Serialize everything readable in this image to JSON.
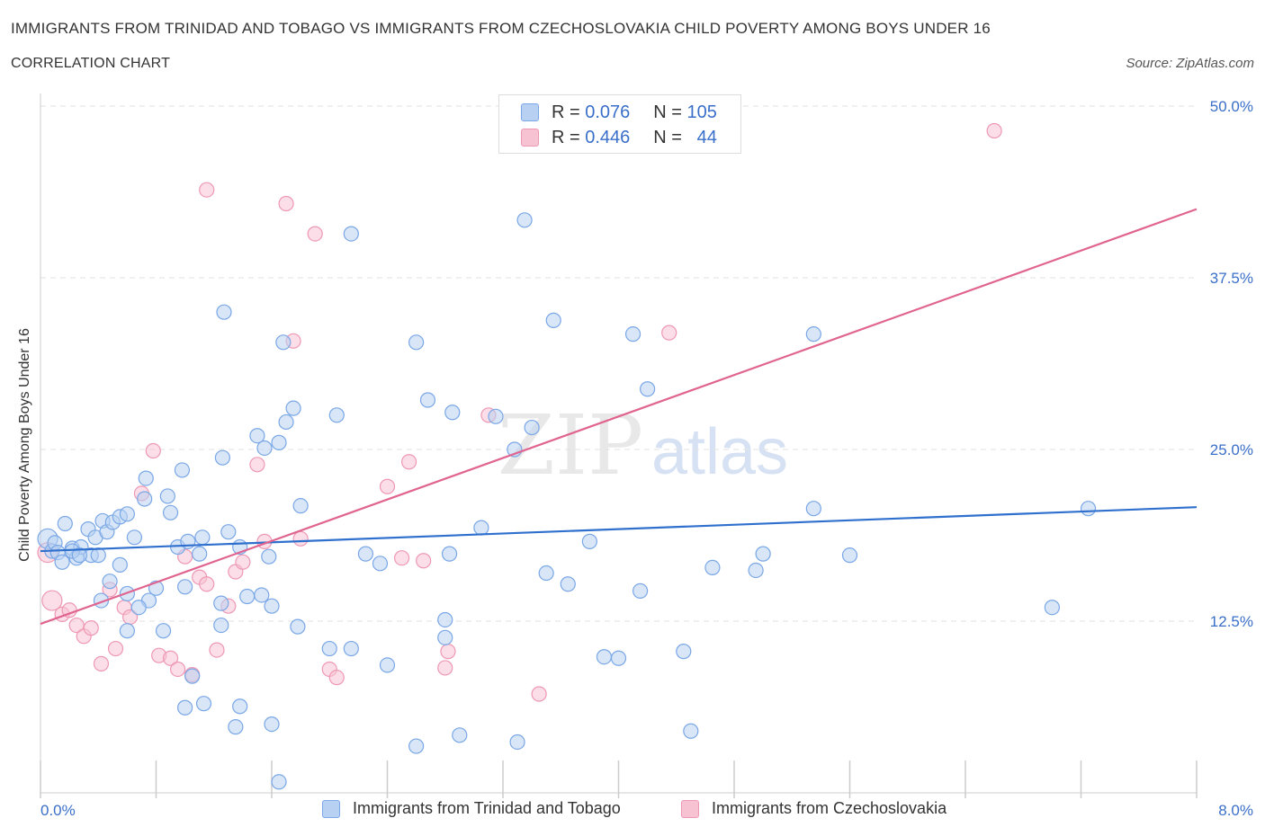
{
  "header": {
    "title": "IMMIGRANTS FROM TRINIDAD AND TOBAGO VS IMMIGRANTS FROM CZECHOSLOVAKIA CHILD POVERTY AMONG BOYS UNDER 16",
    "subtitle": "CORRELATION CHART",
    "source": "Source: ZipAtlas.com"
  },
  "watermark": {
    "zip": "ZIP",
    "atlas": "atlas"
  },
  "legend": {
    "r_label": "R =",
    "n_label": "N =",
    "blue": {
      "r": "0.076",
      "n": "105"
    },
    "pink": {
      "r": "0.446",
      "n": "44"
    }
  },
  "colors": {
    "blue_fill": "#b8d1f3",
    "blue_stroke": "#7aa7e6",
    "blue_line": "#2f6fcd",
    "pink_fill": "#f7c3d3",
    "pink_stroke": "#ee98b4",
    "pink_line": "#e0648f",
    "tick_text": "#3a6fc9"
  },
  "chart_data": {
    "type": "scatter",
    "xlabel": "",
    "ylabel": "Child Poverty Among Boys Under 16",
    "xlim": [
      0,
      8
    ],
    "ylim": [
      0,
      50
    ],
    "x_tick_labels": [
      {
        "value": 0,
        "label": "0.0%"
      },
      {
        "value": 8,
        "label": "8.0%"
      }
    ],
    "y_tick_labels": [
      {
        "value": 12.5,
        "label": "12.5%"
      },
      {
        "value": 25,
        "label": "25.0%"
      },
      {
        "value": 37.5,
        "label": "37.5%"
      },
      {
        "value": 50,
        "label": "50.0%"
      }
    ],
    "grid": true,
    "series": [
      {
        "name": "Immigrants from Trinidad and Tobago",
        "color": "#b8d1f3",
        "trend": [
          [
            0,
            17.6
          ],
          [
            8,
            20.8
          ]
        ],
        "points": [
          [
            0.05,
            18.5
          ],
          [
            0.08,
            17.6
          ],
          [
            0.1,
            18.2
          ],
          [
            0.12,
            17.5
          ],
          [
            0.15,
            16.8
          ],
          [
            0.17,
            19.6
          ],
          [
            0.22,
            17.8
          ],
          [
            0.25,
            17.1
          ],
          [
            0.28,
            17.9
          ],
          [
            0.33,
            19.2
          ],
          [
            0.35,
            17.3
          ],
          [
            0.38,
            18.6
          ],
          [
            0.43,
            19.8
          ],
          [
            0.46,
            19.0
          ],
          [
            0.5,
            19.7
          ],
          [
            0.55,
            20.1
          ],
          [
            0.6,
            20.3
          ],
          [
            0.72,
            21.4
          ],
          [
            0.73,
            22.9
          ],
          [
            0.88,
            21.6
          ],
          [
            0.9,
            20.4
          ],
          [
            0.98,
            23.5
          ],
          [
            0.22,
            17.6
          ],
          [
            0.27,
            17.3
          ],
          [
            0.4,
            17.3
          ],
          [
            0.48,
            15.4
          ],
          [
            0.42,
            14.0
          ],
          [
            0.55,
            16.6
          ],
          [
            0.6,
            14.5
          ],
          [
            0.65,
            18.6
          ],
          [
            0.75,
            14.0
          ],
          [
            0.8,
            14.9
          ],
          [
            0.85,
            11.8
          ],
          [
            0.95,
            17.9
          ],
          [
            1.02,
            18.3
          ],
          [
            1.1,
            17.4
          ],
          [
            1.05,
            8.5
          ],
          [
            1.12,
            18.6
          ],
          [
            1.3,
            19.0
          ],
          [
            1.38,
            17.9
          ],
          [
            1.26,
            24.4
          ],
          [
            1.25,
            13.8
          ],
          [
            1.53,
            14.4
          ],
          [
            1.58,
            17.2
          ],
          [
            1.6,
            13.6
          ],
          [
            1.55,
            25.1
          ],
          [
            1.65,
            25.5
          ],
          [
            1.7,
            27.0
          ],
          [
            1.75,
            28.0
          ],
          [
            1.8,
            20.9
          ],
          [
            2.05,
            27.5
          ],
          [
            2.15,
            10.5
          ],
          [
            2.25,
            17.4
          ],
          [
            2.35,
            16.7
          ],
          [
            2.68,
            28.6
          ],
          [
            2.8,
            12.6
          ],
          [
            2.8,
            11.3
          ],
          [
            2.83,
            17.4
          ],
          [
            2.85,
            27.7
          ],
          [
            2.9,
            4.2
          ],
          [
            3.05,
            19.3
          ],
          [
            3.15,
            27.4
          ],
          [
            3.28,
            25.0
          ],
          [
            3.4,
            26.6
          ],
          [
            3.5,
            16.0
          ],
          [
            3.55,
            34.4
          ],
          [
            3.65,
            15.2
          ],
          [
            3.8,
            18.3
          ],
          [
            3.9,
            9.9
          ],
          [
            4.0,
            9.8
          ],
          [
            4.1,
            33.4
          ],
          [
            4.15,
            14.7
          ],
          [
            4.2,
            29.4
          ],
          [
            4.45,
            10.3
          ],
          [
            4.5,
            4.5
          ],
          [
            4.65,
            16.4
          ],
          [
            4.95,
            16.2
          ],
          [
            5.0,
            17.4
          ],
          [
            5.35,
            20.7
          ],
          [
            5.35,
            33.4
          ],
          [
            5.6,
            17.3
          ],
          [
            7.0,
            13.5
          ],
          [
            7.25,
            20.7
          ],
          [
            1.27,
            35.0
          ],
          [
            1.68,
            32.8
          ],
          [
            2.15,
            40.7
          ],
          [
            2.6,
            32.8
          ],
          [
            3.35,
            41.7
          ],
          [
            1.5,
            26.0
          ],
          [
            1.43,
            14.3
          ],
          [
            1.38,
            6.3
          ],
          [
            1.35,
            4.8
          ],
          [
            1.6,
            5.0
          ],
          [
            1.65,
            0.8
          ],
          [
            1.0,
            6.2
          ],
          [
            1.13,
            6.5
          ],
          [
            2.6,
            3.4
          ],
          [
            3.3,
            3.7
          ],
          [
            0.6,
            11.8
          ],
          [
            0.68,
            13.5
          ],
          [
            1.0,
            15.0
          ],
          [
            1.25,
            12.2
          ],
          [
            1.78,
            12.1
          ],
          [
            2.0,
            10.5
          ],
          [
            2.4,
            9.3
          ]
        ]
      },
      {
        "name": "Immigrants from Czechoslovakia",
        "color": "#f7c3d3",
        "trend": [
          [
            0,
            12.3
          ],
          [
            8,
            42.5
          ]
        ],
        "points": [
          [
            0.05,
            17.5
          ],
          [
            0.08,
            14.0
          ],
          [
            0.15,
            13.0
          ],
          [
            0.2,
            13.3
          ],
          [
            0.25,
            12.2
          ],
          [
            0.3,
            11.4
          ],
          [
            0.35,
            12.0
          ],
          [
            0.42,
            9.4
          ],
          [
            0.48,
            14.8
          ],
          [
            0.52,
            10.5
          ],
          [
            0.58,
            13.5
          ],
          [
            0.62,
            12.8
          ],
          [
            0.7,
            21.8
          ],
          [
            0.78,
            24.9
          ],
          [
            0.82,
            10.0
          ],
          [
            0.9,
            9.8
          ],
          [
            0.95,
            9.0
          ],
          [
            1.0,
            17.2
          ],
          [
            1.05,
            8.6
          ],
          [
            1.1,
            15.7
          ],
          [
            1.15,
            15.2
          ],
          [
            1.22,
            10.4
          ],
          [
            1.3,
            13.6
          ],
          [
            1.35,
            16.1
          ],
          [
            1.4,
            16.8
          ],
          [
            1.5,
            23.9
          ],
          [
            1.55,
            18.3
          ],
          [
            1.75,
            32.9
          ],
          [
            1.8,
            18.5
          ],
          [
            2.0,
            9.0
          ],
          [
            2.05,
            8.4
          ],
          [
            2.4,
            22.3
          ],
          [
            2.5,
            17.1
          ],
          [
            2.55,
            24.1
          ],
          [
            2.65,
            16.9
          ],
          [
            2.8,
            9.1
          ],
          [
            2.82,
            10.3
          ],
          [
            3.1,
            27.5
          ],
          [
            3.45,
            7.2
          ],
          [
            4.35,
            33.5
          ],
          [
            1.15,
            43.9
          ],
          [
            1.9,
            40.7
          ],
          [
            1.7,
            42.9
          ],
          [
            6.6,
            48.2
          ]
        ]
      }
    ]
  },
  "bottom_legend": [
    {
      "label": "Immigrants from Trinidad and Tobago"
    },
    {
      "label": "Immigrants from Czechoslovakia"
    }
  ]
}
